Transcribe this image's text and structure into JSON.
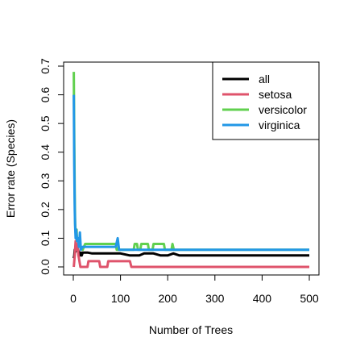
{
  "chart_data": {
    "type": "line",
    "xlabel": "Number of Trees",
    "ylabel": "Error rate (Species)",
    "xlim": [
      0,
      500
    ],
    "ylim": [
      0,
      0.7
    ],
    "xticks": [
      "0",
      "100",
      "200",
      "300",
      "400",
      "500"
    ],
    "yticks": [
      "0.0",
      "0.1",
      "0.2",
      "0.3",
      "0.4",
      "0.5",
      "0.6",
      "0.7"
    ],
    "grid": false,
    "legend_position": "top-right",
    "series": [
      {
        "name": "all",
        "color": "#000000",
        "points": [
          [
            1,
            0.03
          ],
          [
            2,
            0.04
          ],
          [
            3,
            0.06
          ],
          [
            4,
            0.05
          ],
          [
            6,
            0.06
          ],
          [
            8,
            0.07
          ],
          [
            10,
            0.06
          ],
          [
            12,
            0.05
          ],
          [
            14,
            0.04
          ],
          [
            16,
            0.05
          ],
          [
            18,
            0.04
          ],
          [
            20,
            0.05
          ],
          [
            30,
            0.05
          ],
          [
            40,
            0.047
          ],
          [
            60,
            0.047
          ],
          [
            80,
            0.047
          ],
          [
            100,
            0.047
          ],
          [
            120,
            0.04
          ],
          [
            140,
            0.04
          ],
          [
            150,
            0.047
          ],
          [
            170,
            0.047
          ],
          [
            185,
            0.04
          ],
          [
            200,
            0.04
          ],
          [
            212,
            0.047
          ],
          [
            225,
            0.04
          ],
          [
            500,
            0.04
          ]
        ]
      },
      {
        "name": "setosa",
        "color": "#df536b",
        "points": [
          [
            1,
            0.0
          ],
          [
            2,
            0.02
          ],
          [
            3,
            0.04
          ],
          [
            5,
            0.09
          ],
          [
            7,
            0.06
          ],
          [
            9,
            0.08
          ],
          [
            11,
            0.04
          ],
          [
            13,
            0.02
          ],
          [
            15,
            0.0
          ],
          [
            30,
            0.0
          ],
          [
            32,
            0.02
          ],
          [
            55,
            0.02
          ],
          [
            57,
            0.0
          ],
          [
            72,
            0.0
          ],
          [
            74,
            0.02
          ],
          [
            120,
            0.02
          ],
          [
            123,
            0.0
          ],
          [
            500,
            0.0
          ]
        ]
      },
      {
        "name": "versicolor",
        "color": "#61d04f",
        "points": [
          [
            1,
            0.68
          ],
          [
            2,
            0.45
          ],
          [
            3,
            0.25
          ],
          [
            4,
            0.15
          ],
          [
            5,
            0.12
          ],
          [
            6,
            0.1
          ],
          [
            7,
            0.13
          ],
          [
            8,
            0.09
          ],
          [
            10,
            0.1
          ],
          [
            12,
            0.08
          ],
          [
            15,
            0.07
          ],
          [
            20,
            0.06
          ],
          [
            25,
            0.08
          ],
          [
            90,
            0.08
          ],
          [
            92,
            0.06
          ],
          [
            128,
            0.06
          ],
          [
            130,
            0.08
          ],
          [
            135,
            0.08
          ],
          [
            137,
            0.06
          ],
          [
            142,
            0.06
          ],
          [
            144,
            0.08
          ],
          [
            158,
            0.08
          ],
          [
            160,
            0.06
          ],
          [
            168,
            0.06
          ],
          [
            170,
            0.08
          ],
          [
            192,
            0.08
          ],
          [
            194,
            0.06
          ],
          [
            208,
            0.06
          ],
          [
            210,
            0.08
          ],
          [
            213,
            0.06
          ],
          [
            500,
            0.06
          ]
        ]
      },
      {
        "name": "virginica",
        "color": "#2297e6",
        "points": [
          [
            1,
            0.6
          ],
          [
            2,
            0.35
          ],
          [
            3,
            0.2
          ],
          [
            4,
            0.14
          ],
          [
            5,
            0.1
          ],
          [
            6,
            0.13
          ],
          [
            8,
            0.09
          ],
          [
            10,
            0.1
          ],
          [
            12,
            0.07
          ],
          [
            14,
            0.12
          ],
          [
            16,
            0.06
          ],
          [
            20,
            0.07
          ],
          [
            30,
            0.07
          ],
          [
            90,
            0.07
          ],
          [
            94,
            0.1
          ],
          [
            97,
            0.06
          ],
          [
            500,
            0.06
          ]
        ]
      }
    ]
  }
}
